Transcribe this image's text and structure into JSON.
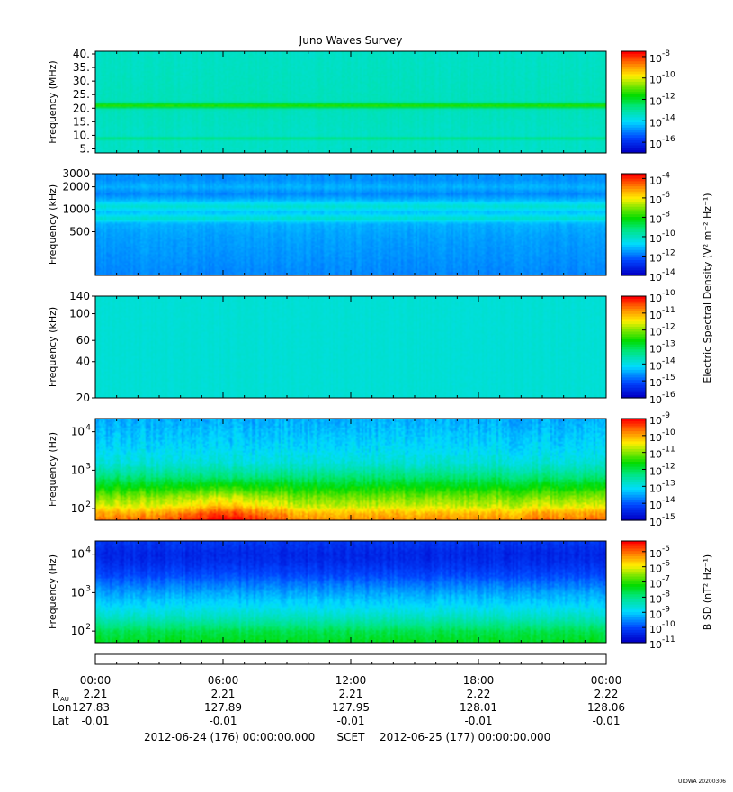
{
  "chart_data": {
    "type": "heatmap",
    "title": "Juno Waves Survey",
    "time_axis": {
      "ticks": [
        "00:00",
        "06:00",
        "12:00",
        "18:00",
        "00:00"
      ],
      "tick_hours": [
        0,
        6,
        12,
        18,
        24
      ],
      "rows": [
        {
          "label": "R",
          "label_sub": "AU",
          "values": [
            "2.21",
            "2.21",
            "2.21",
            "2.22",
            "2.22"
          ]
        },
        {
          "label": "Lon",
          "label_sub": "",
          "values": [
            "127.83",
            "127.89",
            "127.95",
            "128.01",
            "128.06"
          ]
        },
        {
          "label": "Lat",
          "label_sub": "",
          "values": [
            "-0.01",
            "-0.01",
            "-0.01",
            "-0.01",
            "-0.01"
          ]
        }
      ],
      "range_start": "2012-06-24 (176) 00:00:00.000",
      "range_mid": "SCET",
      "range_end": "2012-06-25 (177) 00:00:00.000"
    },
    "colorbar_labels": {
      "electric": "Electric Spectral Density (V² m⁻² Hz⁻¹)",
      "magnetic": "B SD (nT² Hz⁻¹)"
    },
    "panels": [
      {
        "ylabel": "Frequency (MHz)",
        "scale": "linear",
        "ylim": [
          3.5,
          41
        ],
        "yticks": [
          {
            "v": 40,
            "label": "40."
          },
          {
            "v": 35,
            "label": "35."
          },
          {
            "v": 30,
            "label": "30."
          },
          {
            "v": 25,
            "label": "25."
          },
          {
            "v": 20,
            "label": "20."
          },
          {
            "v": 15,
            "label": "15."
          },
          {
            "v": 10,
            "label": "10."
          },
          {
            "v": 5,
            "label": "5."
          }
        ],
        "colorbar": {
          "min_exp": -17,
          "max_exp": -7.5,
          "ticks": [
            -8,
            -10,
            -12,
            -14,
            -16
          ]
        },
        "profile": [
          [
            3.5,
            -13.5
          ],
          [
            8,
            -13.5
          ],
          [
            8.9,
            -12.7
          ],
          [
            9.8,
            -13.5
          ],
          [
            19.5,
            -13.4
          ],
          [
            21,
            -11.3
          ],
          [
            22.5,
            -13.4
          ],
          [
            41,
            -13.5
          ]
        ],
        "noise": 0.15
      },
      {
        "ylabel": "Frequency (kHz)",
        "scale": "log",
        "ylim": [
          130,
          3000
        ],
        "yticks": [
          {
            "v": 3000,
            "label": "3000"
          },
          {
            "v": 2000,
            "label": "2000"
          },
          {
            "v": 1000,
            "label": "1000"
          },
          {
            "v": 500,
            "label": "500"
          }
        ],
        "colorbar": {
          "min_exp": -14,
          "max_exp": -3.5,
          "ticks": [
            -4,
            -6,
            -8,
            -10,
            -12,
            -14
          ]
        },
        "profile": [
          [
            130,
            -11.8
          ],
          [
            450,
            -11.5
          ],
          [
            650,
            -11.3
          ],
          [
            750,
            -10.1
          ],
          [
            900,
            -11.2
          ],
          [
            1100,
            -10.2
          ],
          [
            1300,
            -11.2
          ],
          [
            1600,
            -11.8
          ],
          [
            2000,
            -11.3
          ],
          [
            2500,
            -11.7
          ],
          [
            3000,
            -11.6
          ]
        ],
        "noise": 0.22
      },
      {
        "ylabel": "Frequency (kHz)",
        "scale": "log",
        "ylim": [
          20,
          140
        ],
        "yticks": [
          {
            "v": 140,
            "label": "140"
          },
          {
            "v": 100,
            "label": "100"
          },
          {
            "v": 60,
            "label": "60"
          },
          {
            "v": 40,
            "label": "40"
          },
          {
            "v": 20,
            "label": "20"
          }
        ],
        "colorbar": {
          "min_exp": -16,
          "max_exp": -10,
          "ticks": [
            -10,
            -11,
            -12,
            -13,
            -14,
            -15,
            -16
          ]
        },
        "profile": [
          [
            20,
            -13.9
          ],
          [
            140,
            -13.9
          ]
        ],
        "noise": 0.07
      },
      {
        "ylabel": "Frequency (Hz)",
        "scale": "log",
        "ylim": [
          50,
          22000
        ],
        "yticks": [
          {
            "v": 10000,
            "label": "10",
            "exp": "4"
          },
          {
            "v": 1000,
            "label": "10",
            "exp": "3"
          },
          {
            "v": 100,
            "label": "10",
            "exp": "2"
          }
        ],
        "colorbar": {
          "min_exp": -15,
          "max_exp": -9,
          "ticks": [
            -9,
            -10,
            -11,
            -12,
            -13,
            -14,
            -15
          ]
        },
        "profile": [
          [
            50,
            -9.6
          ],
          [
            80,
            -10.0
          ],
          [
            120,
            -10.6
          ],
          [
            200,
            -11.0
          ],
          [
            350,
            -11.6
          ],
          [
            700,
            -12.3
          ],
          [
            1500,
            -12.9
          ],
          [
            4000,
            -13.2
          ],
          [
            22000,
            -13.5
          ]
        ],
        "noise": 0.3,
        "burst": true
      },
      {
        "ylabel": "Frequency (Hz)",
        "scale": "log",
        "ylim": [
          50,
          22000
        ],
        "yticks": [
          {
            "v": 10000,
            "label": "10",
            "exp": "4"
          },
          {
            "v": 1000,
            "label": "10",
            "exp": "3"
          },
          {
            "v": 100,
            "label": "10",
            "exp": "2"
          }
        ],
        "colorbar": {
          "min_exp": -11,
          "max_exp": -4.3,
          "ticks": [
            -5,
            -6,
            -7,
            -8,
            -9,
            -10,
            -11
          ]
        },
        "profile": [
          [
            50,
            -7.4
          ],
          [
            100,
            -7.7
          ],
          [
            200,
            -8.4
          ],
          [
            400,
            -8.9
          ],
          [
            1000,
            -9.4
          ],
          [
            3000,
            -10.1
          ],
          [
            6000,
            -10.4
          ],
          [
            10000,
            -10.5
          ],
          [
            20000,
            -10.3
          ],
          [
            22000,
            -10.2
          ]
        ],
        "noise": 0.25
      }
    ]
  },
  "footer": {
    "credit": "UIOWA 20200306"
  }
}
